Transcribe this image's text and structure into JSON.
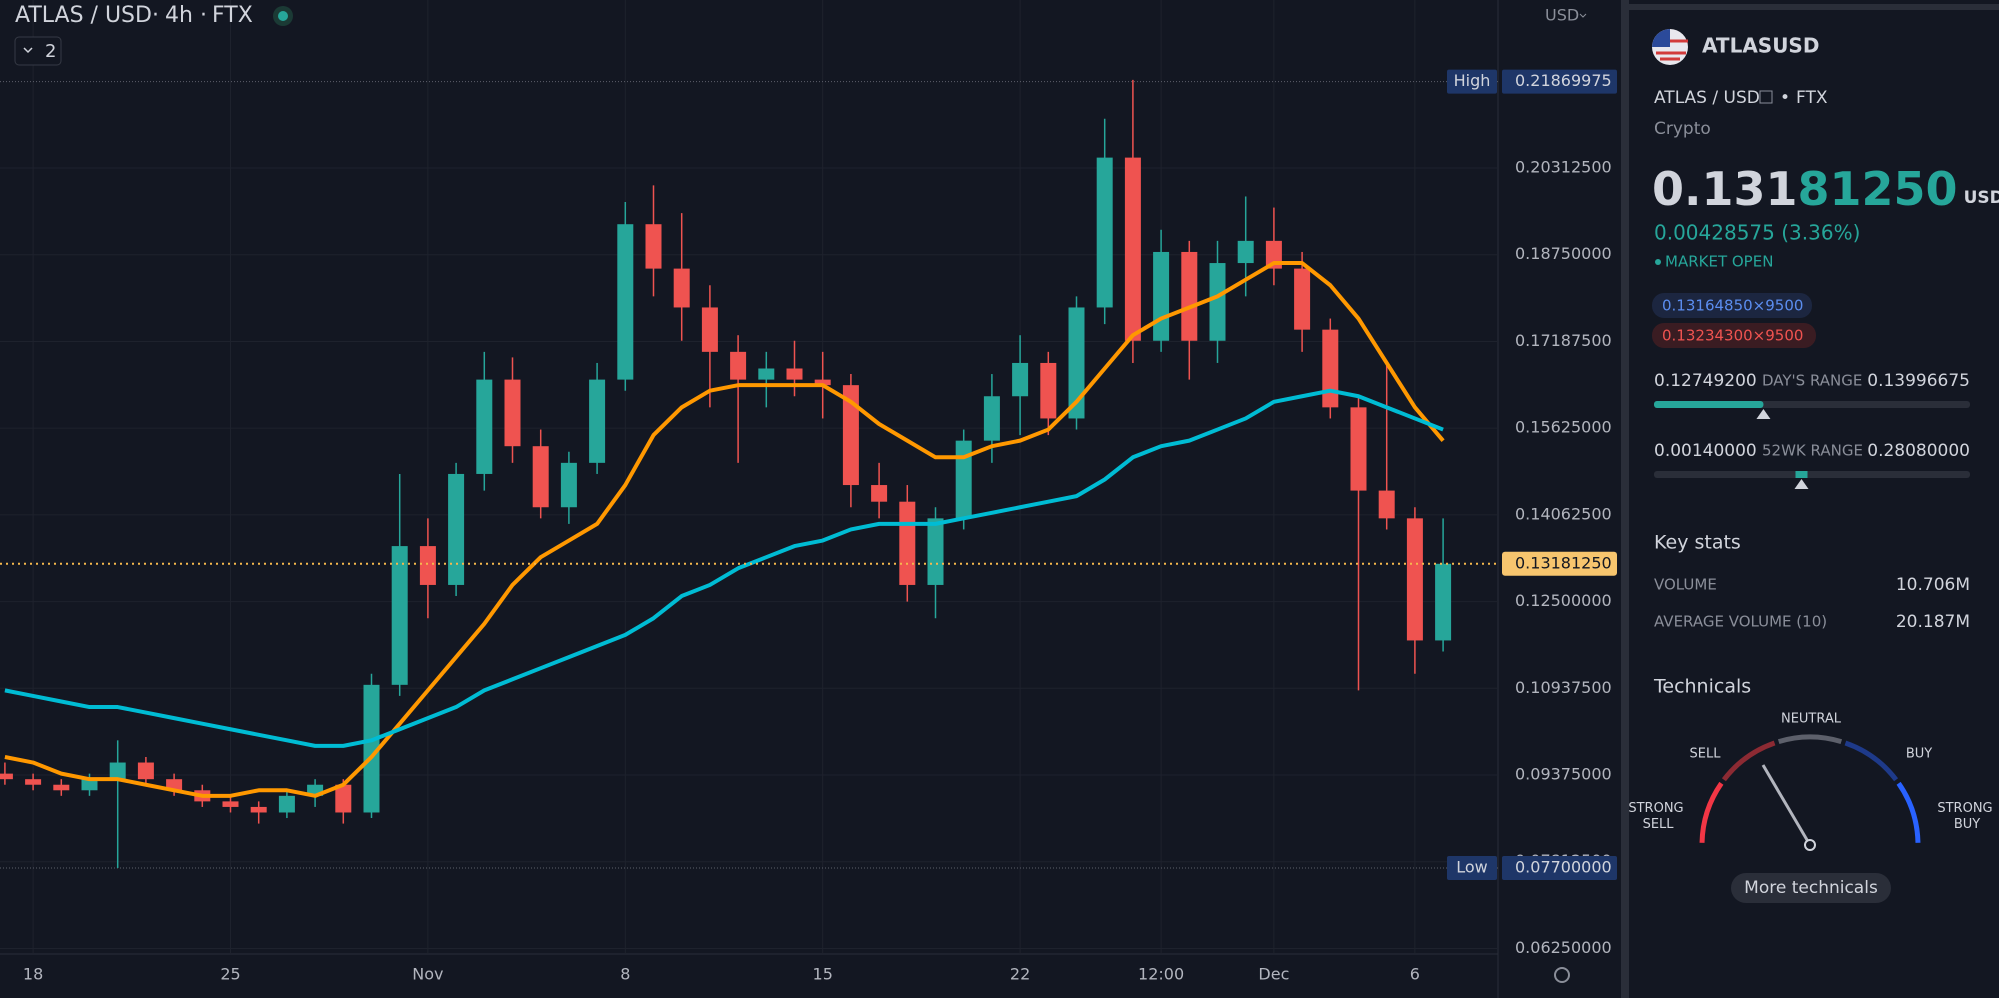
{
  "header": {
    "symbol": "ATLAS / USD",
    "interval": "4h",
    "exchange": "FTX",
    "indicator_count": "2",
    "currency": "USD"
  },
  "chart_data": {
    "type": "candlestick",
    "categories": [
      null,
      "18",
      null,
      null,
      null,
      null,
      null,
      null,
      "25",
      null,
      null,
      null,
      null,
      null,
      null,
      "Nov",
      null,
      null,
      null,
      null,
      null,
      null,
      "8",
      null,
      null,
      null,
      null,
      null,
      null,
      "15",
      null,
      null,
      null,
      null,
      null,
      null,
      "22",
      null,
      null,
      null,
      null,
      "12:00",
      null,
      null,
      null,
      "Dec",
      null,
      null,
      null,
      null,
      "6",
      null
    ],
    "open": [
      0.094,
      0.093,
      0.092,
      0.091,
      0.093,
      0.096,
      0.093,
      0.091,
      0.089,
      0.088,
      0.087,
      0.09,
      0.092,
      0.087,
      0.11,
      0.135,
      0.128,
      0.148,
      0.165,
      0.153,
      0.142,
      0.15,
      0.165,
      0.193,
      0.185,
      0.178,
      0.17,
      0.165,
      0.167,
      0.165,
      0.164,
      0.146,
      0.143,
      0.128,
      0.14,
      0.154,
      0.162,
      0.168,
      0.158,
      0.178,
      0.205,
      0.172,
      0.188,
      0.172,
      0.186,
      0.19,
      0.185,
      0.174,
      0.16,
      0.145,
      0.14,
      0.118
    ],
    "high": [
      0.096,
      0.094,
      0.093,
      0.094,
      0.1,
      0.097,
      0.094,
      0.092,
      0.09,
      0.089,
      0.091,
      0.093,
      0.093,
      0.112,
      0.148,
      0.14,
      0.15,
      0.17,
      0.169,
      0.156,
      0.152,
      0.168,
      0.197,
      0.2,
      0.195,
      0.182,
      0.173,
      0.17,
      0.172,
      0.17,
      0.166,
      0.15,
      0.146,
      0.142,
      0.156,
      0.166,
      0.173,
      0.17,
      0.18,
      0.212,
      0.219,
      0.192,
      0.19,
      0.19,
      0.198,
      0.196,
      0.188,
      0.176,
      0.162,
      0.168,
      0.142,
      0.14
    ],
    "low": [
      0.092,
      0.091,
      0.09,
      0.09,
      0.077,
      0.092,
      0.09,
      0.088,
      0.087,
      0.085,
      0.086,
      0.088,
      0.085,
      0.086,
      0.108,
      0.122,
      0.126,
      0.145,
      0.15,
      0.14,
      0.139,
      0.148,
      0.163,
      0.18,
      0.172,
      0.16,
      0.15,
      0.16,
      0.162,
      0.158,
      0.142,
      0.14,
      0.125,
      0.122,
      0.138,
      0.15,
      0.155,
      0.155,
      0.156,
      0.175,
      0.168,
      0.17,
      0.165,
      0.168,
      0.18,
      0.182,
      0.17,
      0.158,
      0.109,
      0.138,
      0.112,
      0.116
    ],
    "close": [
      0.093,
      0.092,
      0.091,
      0.093,
      0.096,
      0.093,
      0.091,
      0.089,
      0.088,
      0.087,
      0.09,
      0.092,
      0.087,
      0.11,
      0.135,
      0.128,
      0.148,
      0.165,
      0.153,
      0.142,
      0.15,
      0.165,
      0.193,
      0.185,
      0.178,
      0.17,
      0.165,
      0.167,
      0.165,
      0.164,
      0.146,
      0.143,
      0.128,
      0.14,
      0.154,
      0.162,
      0.168,
      0.158,
      0.178,
      0.205,
      0.172,
      0.188,
      0.172,
      0.186,
      0.19,
      0.185,
      0.174,
      0.16,
      0.145,
      0.14,
      0.118,
      0.1318125
    ],
    "up_color": "#26a69a",
    "down_color": "#ef5350",
    "moving_averages": [
      {
        "color": "#ff9800",
        "values": [
          0.097,
          0.096,
          0.094,
          0.093,
          0.093,
          0.092,
          0.091,
          0.09,
          0.09,
          0.091,
          0.091,
          0.09,
          0.092,
          0.097,
          0.103,
          0.109,
          0.115,
          0.121,
          0.128,
          0.133,
          0.136,
          0.139,
          0.146,
          0.155,
          0.16,
          0.163,
          0.164,
          0.164,
          0.164,
          0.164,
          0.161,
          0.157,
          0.154,
          0.151,
          0.151,
          0.153,
          0.154,
          0.156,
          0.161,
          0.167,
          0.173,
          0.176,
          0.178,
          0.18,
          0.183,
          0.186,
          0.186,
          0.182,
          0.176,
          0.168,
          0.16,
          0.154
        ]
      },
      {
        "color": "#00bcd4",
        "values": [
          0.109,
          0.108,
          0.107,
          0.106,
          0.106,
          0.105,
          0.104,
          0.103,
          0.102,
          0.101,
          0.1,
          0.099,
          0.099,
          0.1,
          0.102,
          0.104,
          0.106,
          0.109,
          0.111,
          0.113,
          0.115,
          0.117,
          0.119,
          0.122,
          0.126,
          0.128,
          0.131,
          0.133,
          0.135,
          0.136,
          0.138,
          0.139,
          0.139,
          0.139,
          0.14,
          0.141,
          0.142,
          0.143,
          0.144,
          0.147,
          0.151,
          0.153,
          0.154,
          0.156,
          0.158,
          0.161,
          0.162,
          0.163,
          0.162,
          0.16,
          0.158,
          0.156
        ]
      }
    ],
    "ylim": [
      0.0615,
      0.2334
    ],
    "yticks": [
      {
        "value": 0.0625,
        "label": "0.06250000"
      },
      {
        "value": 0.078125,
        "label": "0.07812500"
      },
      {
        "value": 0.09375,
        "label": "0.09375000"
      },
      {
        "value": 0.109375,
        "label": "0.10937500"
      },
      {
        "value": 0.125,
        "label": "0.12500000"
      },
      {
        "value": 0.140625,
        "label": "0.14062500"
      },
      {
        "value": 0.15625,
        "label": "0.15625000"
      },
      {
        "value": 0.171875,
        "label": "0.17187500"
      },
      {
        "value": 0.1875,
        "label": "0.18750000"
      },
      {
        "value": 0.203125,
        "label": "0.20312500"
      }
    ],
    "grid": true,
    "high_marker": {
      "label": "High",
      "price": {
        "value": 0.21869975,
        "label": "0.21869975"
      }
    },
    "low_marker": {
      "label": "Low",
      "price": {
        "value": 0.077,
        "label": "0.07700000"
      }
    },
    "last_price": {
      "value": 0.1318125,
      "label": "0.13181250"
    }
  },
  "panel": {
    "ticker": "ATLASUSD",
    "pair": "ATLAS / USD",
    "exchange": "FTX",
    "market": "Crypto",
    "price": {
      "value": 0.1318125,
      "lead": "0.131",
      "tail": "81250",
      "currency": "USD"
    },
    "change": "0.00428575 (3.36%)",
    "status": "MARKET OPEN",
    "bid": "0.13164850×9500",
    "ask": "0.13234300×9500",
    "days_range": {
      "label": "DAY'S RANGE",
      "low": {
        "value": 0.127492,
        "label": "0.12749200"
      },
      "high": {
        "value": 0.13996675,
        "label": "0.13996675"
      }
    },
    "wk52_range": {
      "label": "52WK RANGE",
      "low": {
        "value": 0.0014,
        "label": "0.00140000"
      },
      "high": {
        "value": 0.2808,
        "label": "0.28080000"
      }
    },
    "key_stats": {
      "title": "Key stats",
      "rows": [
        [
          "VOLUME",
          "10.706M"
        ],
        [
          "AVERAGE VOLUME (10)",
          "20.187M"
        ]
      ]
    },
    "technicals": {
      "title": "Technicals",
      "strong_sell": "STRONG SELL",
      "sell": "SELL",
      "neutral": "NEUTRAL",
      "buy": "BUY",
      "strong_buy": "STRONG BUY",
      "button": "More technicals"
    }
  }
}
